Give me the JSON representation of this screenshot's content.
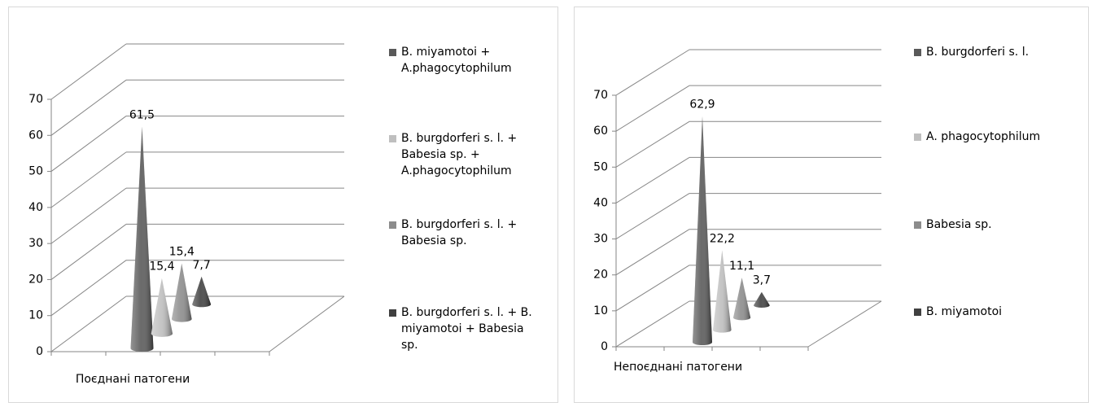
{
  "chart_data": [
    {
      "type": "cone",
      "categories": [
        "Поєднані патогени"
      ],
      "ylim": [
        0,
        70
      ],
      "yticks": [
        0,
        10,
        20,
        30,
        40,
        50,
        60,
        70
      ],
      "series": [
        {
          "name": "B. miyamotoi + A.phagocytophilum",
          "color": "#595959",
          "values": [
            61.5
          ],
          "value_labels": [
            "61,5"
          ]
        },
        {
          "name": "B. burgdorferi s. l. + Babesia sp. + A.phagocytophilum",
          "color": "#bfbfbf",
          "values": [
            15.4
          ],
          "value_labels": [
            "15,4"
          ]
        },
        {
          "name": "B. burgdorferi s. l. + Babesia sp.",
          "color": "#8c8c8c",
          "values": [
            15.4
          ],
          "value_labels": [
            "15,4"
          ]
        },
        {
          "name": "B. burgdorferi s. l. + B. miyamotoi + Babesia sp.",
          "color": "#404040",
          "values": [
            7.7
          ],
          "value_labels": [
            "7,7"
          ]
        }
      ]
    },
    {
      "type": "cone",
      "categories": [
        "Непоєднані патогени"
      ],
      "ylim": [
        0,
        70
      ],
      "yticks": [
        0,
        10,
        20,
        30,
        40,
        50,
        60,
        70
      ],
      "series": [
        {
          "name": "B. burgdorferi s. l.",
          "color": "#595959",
          "values": [
            62.9
          ],
          "value_labels": [
            "62,9"
          ]
        },
        {
          "name": "A. phagocytophilum",
          "color": "#bfbfbf",
          "values": [
            22.2
          ],
          "value_labels": [
            "22,2"
          ]
        },
        {
          "name": "Babesia sp.",
          "color": "#8c8c8c",
          "values": [
            11.1
          ],
          "value_labels": [
            "11,1"
          ]
        },
        {
          "name": "B. miyamotoi",
          "color": "#404040",
          "values": [
            3.7
          ],
          "value_labels": [
            "3,7"
          ]
        }
      ]
    }
  ]
}
